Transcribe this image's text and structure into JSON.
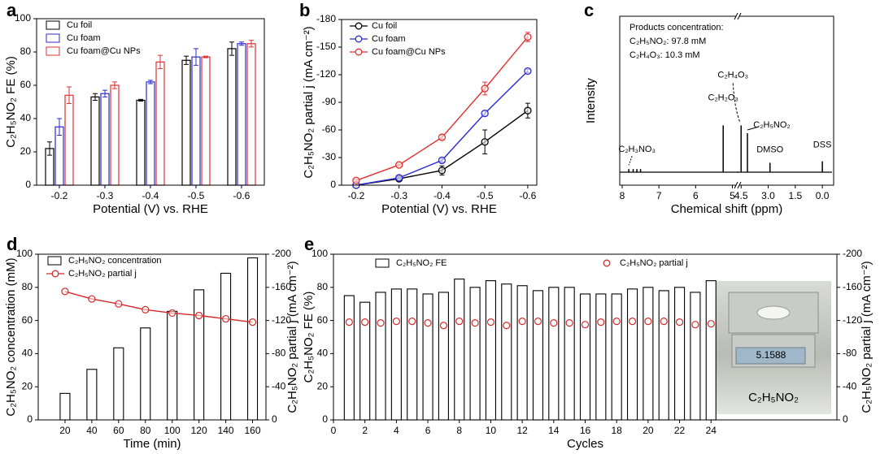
{
  "chart_data": [
    {
      "type": "bar",
      "panel_label": "a",
      "categories": [
        "-0.2",
        "-0.3",
        "-0.4",
        "-0.5",
        "-0.6"
      ],
      "series": [
        {
          "name": "Cu foil",
          "color": "#000000",
          "values": [
            22,
            53,
            51,
            75,
            82
          ],
          "errors": [
            4,
            2,
            0.5,
            2.5,
            4
          ]
        },
        {
          "name": "Cu foam",
          "color": "#2b2bd0",
          "values": [
            35,
            55,
            62,
            77,
            85
          ],
          "errors": [
            5,
            2,
            1,
            5,
            1
          ]
        },
        {
          "name": "Cu foam@Cu NPs",
          "color": "#e03030",
          "values": [
            54,
            60,
            74,
            77,
            85
          ],
          "errors": [
            5,
            2,
            4,
            0.5,
            2
          ]
        }
      ],
      "ylim": [
        0,
        100
      ],
      "yticks": [
        0,
        20,
        40,
        60,
        80,
        100
      ],
      "xlabel": "Potential (V) vs. RHE",
      "ylabel": "C₂H₅NO₂ FE (%)",
      "legend": "upper left"
    },
    {
      "type": "line",
      "panel_label": "b",
      "x": [
        -0.2,
        -0.3,
        -0.4,
        -0.5,
        -0.6
      ],
      "series": [
        {
          "name": "Cu foil",
          "color": "#000000",
          "values": [
            0,
            -7,
            -16,
            -47,
            -81
          ],
          "errors": [
            0,
            1,
            5,
            13,
            8
          ]
        },
        {
          "name": "Cu foam",
          "color": "#2b2bd0",
          "values": [
            0,
            -8,
            -27,
            -78,
            -124
          ],
          "errors": [
            0,
            1,
            2,
            3,
            2
          ]
        },
        {
          "name": "Cu foam@Cu NPs",
          "color": "#e03030",
          "values": [
            -5,
            -22,
            -52,
            -105,
            -161
          ],
          "errors": [
            1,
            1,
            2,
            7,
            5
          ]
        }
      ],
      "xlim": [
        -0.166,
        -0.621
      ],
      "xticks": [
        -0.2,
        -0.3,
        -0.4,
        -0.5,
        -0.6
      ],
      "ylim": [
        0,
        -180
      ],
      "yticks": [
        0,
        -30,
        -60,
        -90,
        -120,
        -150,
        -180
      ],
      "xlabel": "Potential (V) vs. RHE",
      "ylabel": "C₂H₅NO₂ partial j (mA cm⁻²)",
      "legend": "upper left"
    },
    {
      "type": "spectrum",
      "panel_label": "c",
      "x": [
        7.82,
        7.7,
        7.6,
        7.5,
        5.25,
        4.5,
        4.15,
        2.9,
        0
      ],
      "values": [
        2,
        2,
        2,
        2,
        30,
        30,
        25,
        6,
        7
      ],
      "peak_labels": [
        "C₂H₃NO₃",
        null,
        null,
        null,
        "C₂H₂O₃",
        "C₂H₄O₃",
        "C₂H₅NO₂",
        "DMSO",
        "DSS"
      ],
      "xlim": [
        [
          8,
          4.9
        ],
        [
          4.6,
          -0.4
        ]
      ],
      "ylim": [
        0,
        100
      ],
      "xticks": [
        8,
        7,
        6,
        5,
        4.5,
        {
          "value": 3,
          "label": "3.0"
        },
        1.5,
        {
          "value": 0,
          "label": "0.0"
        }
      ],
      "annotations": [
        "Products concentration:",
        "C₂H₅NO₂:  97.8 mM",
        "C₂H₄O₃:  10.3 mM"
      ],
      "xlabel": "Chemical shift (ppm)",
      "ylabel": "Intensity"
    },
    {
      "type": "combo",
      "panel_label": "d",
      "x": [
        20,
        40,
        60,
        80,
        100,
        120,
        140,
        160
      ],
      "series": [
        {
          "name": "C₂H₅NO₂ concentration",
          "mark": "bar",
          "color": "#000000",
          "values": [
            16,
            30.5,
            43.5,
            55.5,
            65.5,
            78.5,
            88.5,
            97.8
          ]
        },
        {
          "name": "C₂H₅NO₂ partial j",
          "mark": "line",
          "color": "#d62828",
          "axis": "y2",
          "values": [
            -155,
            -146,
            -140,
            -133,
            -129,
            -126,
            -122,
            -118
          ]
        }
      ],
      "xlim": [
        0,
        170
      ],
      "xticks": [
        20,
        40,
        60,
        80,
        100,
        120,
        140,
        160
      ],
      "ylim": [
        0,
        100
      ],
      "yticks": [
        0,
        20,
        40,
        60,
        80,
        100
      ],
      "y2lim": [
        0,
        -200
      ],
      "y2ticks": [
        0,
        -40,
        -80,
        -120,
        -160,
        -200
      ],
      "xlabel": "Time (min)",
      "ylabel": "C₂H₅NO₂ concentration (mM)",
      "y2label": "C₂H₅NO₂ partial j (mA cm⁻²)",
      "legend": "upper left"
    },
    {
      "type": "combo",
      "panel_label": "e",
      "x": [
        1,
        2,
        3,
        4,
        5,
        6,
        7,
        8,
        9,
        10,
        11,
        12,
        13,
        14,
        15,
        16,
        17,
        18,
        19,
        20,
        21,
        22,
        23,
        24
      ],
      "series": [
        {
          "name": "C₂H₅NO₂ FE",
          "mark": "bar",
          "color": "#000000",
          "values": [
            75,
            71,
            77,
            79,
            79,
            76,
            77,
            85,
            80,
            84,
            82,
            81,
            78,
            80,
            80,
            76,
            76,
            76,
            79,
            80,
            78,
            80,
            77,
            84
          ]
        },
        {
          "name": "C₂H₅NO₂ partial j",
          "mark": "scatter",
          "color": "#d62828",
          "axis": "y2",
          "values": [
            -118,
            -118,
            -117,
            -119,
            -119,
            -117,
            -114,
            -119,
            -117,
            -118,
            -114,
            -119,
            -119,
            -117,
            -117,
            -115,
            -118,
            -119,
            -119,
            -119,
            -119,
            -118,
            -115,
            -116
          ]
        }
      ],
      "xlim": [
        0,
        32
      ],
      "xticks": [
        0,
        2,
        4,
        6,
        8,
        10,
        12,
        14,
        16,
        18,
        20,
        22,
        24
      ],
      "ylim": [
        0,
        100
      ],
      "yticks": [
        0,
        20,
        40,
        60,
        80,
        100
      ],
      "y2lim": [
        0,
        -200
      ],
      "y2ticks": [
        0,
        -40,
        -80,
        -120,
        -160,
        -200
      ],
      "xlabel": "Cycles",
      "ylabel": "C₂H₅NO₂ FE (%)",
      "y2label": "C₂H₅NO₂ partial j (mA cm⁻²)",
      "legend": "upper center",
      "inset": {
        "label": "C₂H₅NO₂",
        "display": "5.1588"
      }
    }
  ]
}
